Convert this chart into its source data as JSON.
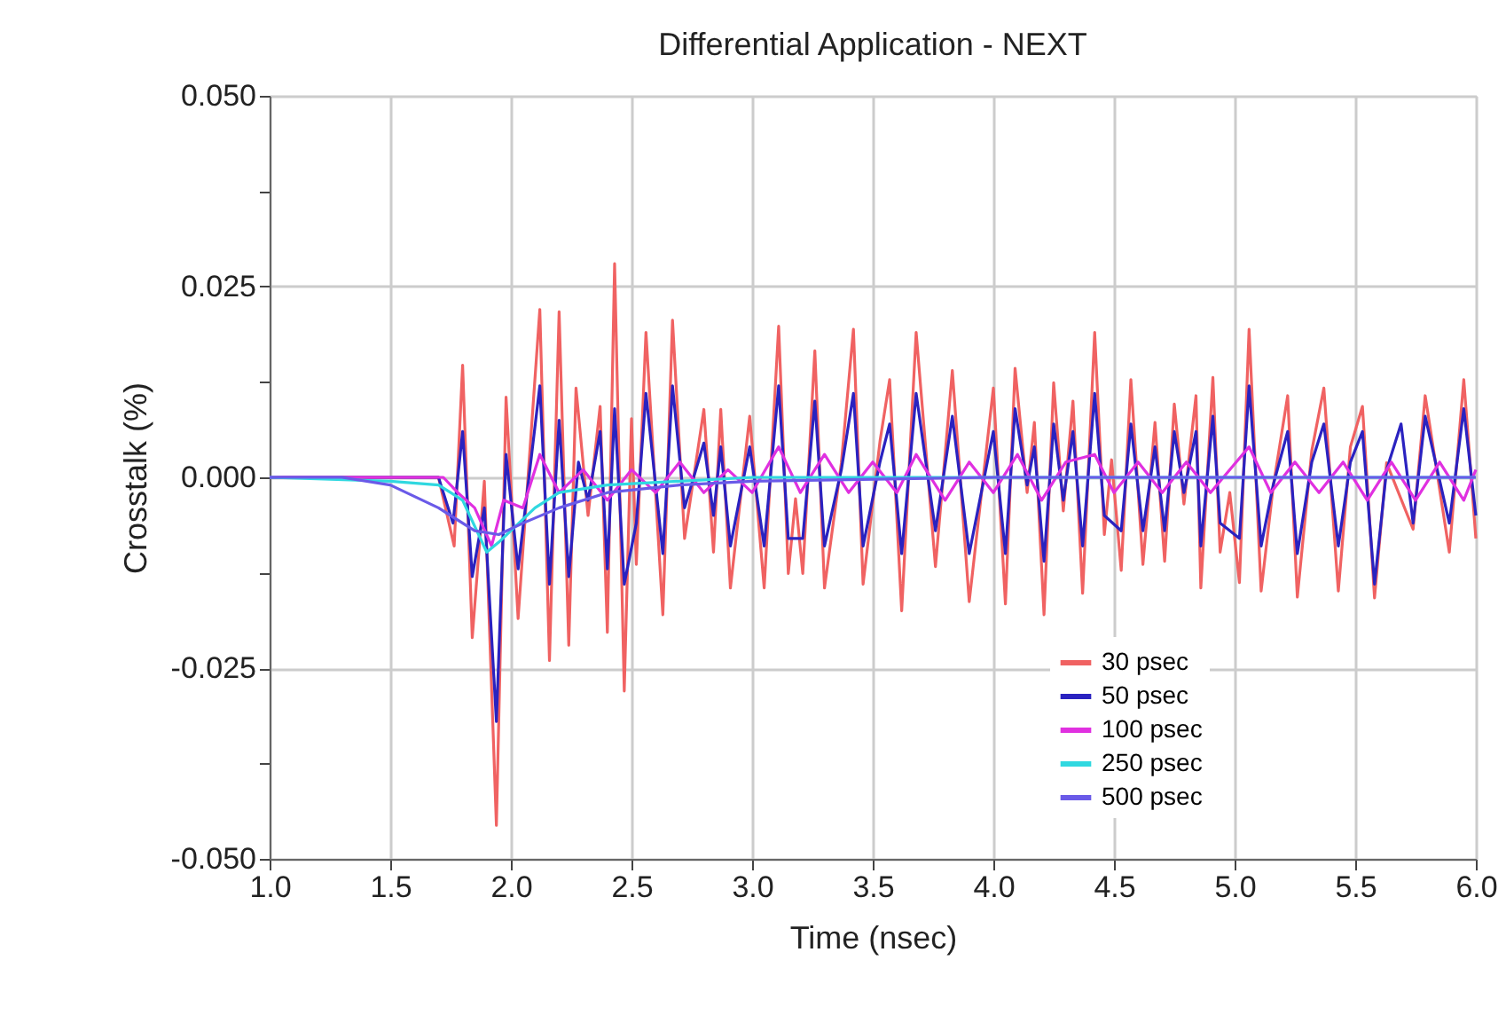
{
  "chart_data": {
    "type": "line",
    "title": "Differential Application - NEXT",
    "xlabel": "Time (nsec)",
    "ylabel": "Crosstalk (%)",
    "xlim": [
      1.0,
      6.0
    ],
    "xticks": [
      {
        "value": 1.0,
        "label": "1.0"
      },
      {
        "value": 1.5,
        "label": "1.5"
      },
      {
        "value": 2.0,
        "label": "2.0"
      },
      {
        "value": 2.5,
        "label": "2.5"
      },
      {
        "value": 3.0,
        "label": "3.0"
      },
      {
        "value": 3.5,
        "label": "3.5"
      },
      {
        "value": 4.0,
        "label": "4.0"
      },
      {
        "value": 4.5,
        "label": "4.5"
      },
      {
        "value": 5.0,
        "label": "5.0"
      },
      {
        "value": 5.5,
        "label": "5.5"
      },
      {
        "value": 6.0,
        "label": "6.0"
      }
    ],
    "ylim": [
      -0.05,
      0.05
    ],
    "yticks": [
      {
        "value": -0.05,
        "label": "-0.050"
      },
      {
        "value": -0.0375,
        "label": null
      },
      {
        "value": -0.025,
        "label": "-0.025"
      },
      {
        "value": -0.0125,
        "label": null
      },
      {
        "value": 0,
        "label": "0.000"
      },
      {
        "value": 0.0125,
        "label": null
      },
      {
        "value": 0.025,
        "label": "0.025"
      },
      {
        "value": 0.0375,
        "label": null
      },
      {
        "value": 0.05,
        "label": "0.050"
      }
    ],
    "grid": true,
    "legend": "bottom right",
    "marker": "none",
    "line_style": "solid",
    "series": [
      {
        "name": "30 psec",
        "color": "#f06262",
        "x": [
          1.0,
          1.7,
          1.765,
          1.8,
          1.84,
          1.89,
          1.94,
          1.98,
          2.03,
          2.12,
          2.16,
          2.2,
          2.24,
          2.27,
          2.32,
          2.37,
          2.4,
          2.43,
          2.47,
          2.5,
          2.52,
          2.56,
          2.63,
          2.67,
          2.72,
          2.8,
          2.84,
          2.87,
          2.91,
          2.99,
          3.05,
          3.11,
          3.15,
          3.18,
          3.21,
          3.26,
          3.3,
          3.37,
          3.42,
          3.46,
          3.53,
          3.57,
          3.62,
          3.68,
          3.76,
          3.83,
          3.9,
          4.0,
          4.05,
          4.09,
          4.14,
          4.17,
          4.21,
          4.25,
          4.29,
          4.33,
          4.37,
          4.42,
          4.46,
          4.49,
          4.53,
          4.57,
          4.62,
          4.67,
          4.71,
          4.75,
          4.79,
          4.84,
          4.86,
          4.91,
          4.94,
          4.98,
          5.02,
          5.06,
          5.11,
          5.16,
          5.22,
          5.26,
          5.32,
          5.37,
          5.43,
          5.48,
          5.53,
          5.58,
          5.63,
          5.74,
          5.79,
          5.89,
          5.95,
          6.0
        ],
        "values": [
          0,
          0,
          -0.009,
          0.0147,
          -0.021,
          -0.0005,
          -0.0456,
          0.0105,
          -0.0185,
          0.022,
          -0.024,
          0.0217,
          -0.022,
          0.0117,
          -0.005,
          0.0093,
          -0.0203,
          0.028,
          -0.028,
          0.0077,
          -0.0114,
          0.019,
          -0.018,
          0.0206,
          -0.008,
          0.0089,
          -0.0098,
          0.0089,
          -0.0145,
          0.008,
          -0.0145,
          0.0198,
          -0.0126,
          -0.0028,
          -0.0126,
          0.0166,
          -0.0145,
          0.0019,
          0.0194,
          -0.014,
          0.0047,
          0.0128,
          -0.0175,
          0.019,
          -0.0117,
          0.014,
          -0.0163,
          0.0117,
          -0.0166,
          0.0143,
          -0.002,
          0.0072,
          -0.018,
          0.0124,
          -0.0044,
          0.01,
          -0.0152,
          0.019,
          -0.0075,
          0.0023,
          -0.0122,
          0.0128,
          -0.0114,
          0.0072,
          -0.011,
          0.0096,
          -0.0035,
          0.0107,
          -0.0145,
          0.0131,
          -0.0098,
          -0.002,
          -0.0138,
          0.0194,
          -0.0149,
          -0.0012,
          0.0107,
          -0.0157,
          0.0035,
          0.0117,
          -0.0149,
          0.004,
          0.0093,
          -0.0158,
          0.0019,
          -0.0068,
          0.0107,
          -0.0098,
          0.0128,
          -0.008
        ]
      },
      {
        "name": "50 psec",
        "color": "#2a22c0",
        "x": [
          1.0,
          1.7,
          1.76,
          1.8,
          1.84,
          1.89,
          1.94,
          1.98,
          2.03,
          2.12,
          2.16,
          2.2,
          2.24,
          2.28,
          2.32,
          2.37,
          2.4,
          2.43,
          2.47,
          2.52,
          2.56,
          2.63,
          2.67,
          2.72,
          2.8,
          2.84,
          2.87,
          2.91,
          2.99,
          3.05,
          3.11,
          3.15,
          3.21,
          3.26,
          3.3,
          3.37,
          3.42,
          3.46,
          3.53,
          3.57,
          3.62,
          3.68,
          3.76,
          3.83,
          3.9,
          4.0,
          4.05,
          4.09,
          4.14,
          4.17,
          4.21,
          4.25,
          4.29,
          4.33,
          4.37,
          4.42,
          4.46,
          4.53,
          4.57,
          4.62,
          4.67,
          4.71,
          4.75,
          4.79,
          4.84,
          4.86,
          4.91,
          4.94,
          5.02,
          5.06,
          5.11,
          5.16,
          5.22,
          5.26,
          5.32,
          5.37,
          5.43,
          5.48,
          5.53,
          5.58,
          5.63,
          5.69,
          5.74,
          5.79,
          5.89,
          5.95,
          6.0
        ],
        "values": [
          0,
          0,
          -0.006,
          0.006,
          -0.013,
          -0.004,
          -0.032,
          0.003,
          -0.012,
          0.012,
          -0.014,
          0.0075,
          -0.013,
          0.002,
          -0.003,
          0.006,
          -0.012,
          0.009,
          -0.014,
          -0.006,
          0.011,
          -0.01,
          0.012,
          -0.004,
          0.0045,
          -0.005,
          0.004,
          -0.009,
          0.004,
          -0.009,
          0.012,
          -0.008,
          -0.008,
          0.01,
          -0.009,
          0.001,
          0.011,
          -0.009,
          0.002,
          0.007,
          -0.01,
          0.011,
          -0.007,
          0.008,
          -0.01,
          0.006,
          -0.01,
          0.009,
          -0.001,
          0.004,
          -0.011,
          0.007,
          -0.003,
          0.006,
          -0.009,
          0.011,
          -0.005,
          -0.007,
          0.007,
          -0.007,
          0.004,
          -0.007,
          0.006,
          -0.002,
          0.006,
          -0.009,
          0.008,
          -0.006,
          -0.008,
          0.012,
          -0.009,
          -0.001,
          0.006,
          -0.01,
          0.002,
          0.007,
          -0.009,
          0.002,
          0.006,
          -0.014,
          0.001,
          0.007,
          -0.006,
          0.008,
          -0.006,
          0.009,
          -0.005
        ]
      },
      {
        "name": "100 psec",
        "color": "#e030e0",
        "x": [
          1.0,
          1.72,
          1.78,
          1.85,
          1.92,
          1.97,
          2.05,
          2.12,
          2.2,
          2.3,
          2.4,
          2.5,
          2.6,
          2.7,
          2.8,
          2.9,
          3.0,
          3.11,
          3.2,
          3.3,
          3.4,
          3.5,
          3.6,
          3.68,
          3.8,
          3.9,
          4.0,
          4.1,
          4.2,
          4.3,
          4.42,
          4.5,
          4.6,
          4.7,
          4.8,
          4.9,
          5.06,
          5.15,
          5.25,
          5.35,
          5.45,
          5.55,
          5.65,
          5.75,
          5.85,
          5.95,
          6.0
        ],
        "values": [
          0,
          0,
          -0.002,
          -0.004,
          -0.009,
          -0.003,
          -0.004,
          0.003,
          -0.002,
          0.001,
          -0.003,
          0.001,
          -0.002,
          0.002,
          -0.002,
          0.001,
          -0.002,
          0.004,
          -0.002,
          0.003,
          -0.002,
          0.002,
          -0.002,
          0.003,
          -0.003,
          0.002,
          -0.002,
          0.003,
          -0.003,
          0.002,
          0.003,
          -0.002,
          0.002,
          -0.002,
          0.002,
          -0.002,
          0.004,
          -0.002,
          0.002,
          -0.002,
          0.002,
          -0.003,
          0.002,
          -0.003,
          0.002,
          -0.003,
          0.001
        ]
      },
      {
        "name": "250 psec",
        "color": "#30d8e0",
        "x": [
          1.0,
          1.5,
          1.7,
          1.8,
          1.9,
          1.95,
          2.0,
          2.1,
          2.2,
          2.4,
          2.7,
          3.0,
          6.0
        ],
        "values": [
          0,
          -0.0005,
          -0.001,
          -0.003,
          -0.0098,
          -0.0085,
          -0.007,
          -0.004,
          -0.002,
          -0.001,
          -0.0005,
          0,
          0
        ]
      },
      {
        "name": "500 psec",
        "color": "#6a5ae8",
        "x": [
          1.0,
          1.3,
          1.5,
          1.7,
          1.85,
          1.95,
          2.05,
          2.2,
          2.4,
          2.7,
          3.0,
          4.0,
          6.0
        ],
        "values": [
          0,
          0,
          -0.001,
          -0.004,
          -0.007,
          -0.0075,
          -0.006,
          -0.004,
          -0.002,
          -0.001,
          -0.0005,
          0,
          0
        ]
      }
    ]
  }
}
